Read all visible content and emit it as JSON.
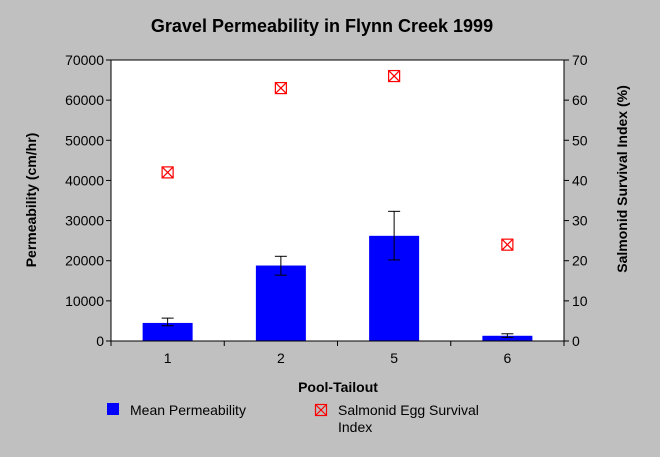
{
  "chart_data": {
    "type": "bar",
    "title": "Gravel Permeability in Flynn Creek 1999",
    "xlabel": "Pool-Tailout",
    "ylabel": "Permeability (cm/hr)",
    "y2label": "Salmonid Survival Index (%)",
    "categories": [
      "1",
      "2",
      "5",
      "6"
    ],
    "ylim": [
      0,
      70000
    ],
    "yticks": [
      "0",
      "10000",
      "20000",
      "30000",
      "40000",
      "50000",
      "60000",
      "70000"
    ],
    "y2lim": [
      0,
      70
    ],
    "y2ticks": [
      "0",
      "10",
      "20",
      "30",
      "40",
      "50",
      "60",
      "70"
    ],
    "grid": false,
    "legend_position": "bottom",
    "series": [
      {
        "name": "Mean Permeability",
        "kind": "bar",
        "axis": "left",
        "color": "#0000ff",
        "values": [
          4500,
          18800,
          26200,
          1300
        ],
        "error_low": [
          3800,
          16400,
          20200,
          900
        ],
        "error_high": [
          5700,
          21100,
          32300,
          1800
        ]
      },
      {
        "name": "Salmonid Egg Survival Index",
        "legend_lines": [
          "Salmonid Egg Survival",
          "Index"
        ],
        "kind": "scatter",
        "axis": "right",
        "color": "#ff0000",
        "marker": "boxed-x",
        "values": [
          42,
          63,
          66,
          24
        ]
      }
    ]
  }
}
